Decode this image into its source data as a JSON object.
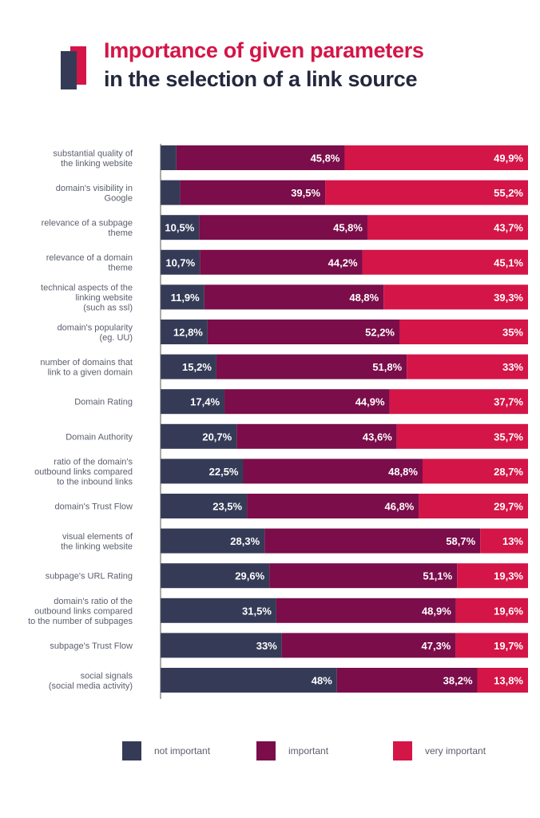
{
  "title": {
    "line1": "Importance of given parameters",
    "line2": "in the selection of a link source"
  },
  "colors": {
    "not_important": "#353b57",
    "important": "#7a0d4a",
    "very_important": "#d41547",
    "label_text": "#5b5f6e",
    "axis": "#555555"
  },
  "legend": {
    "not_important": "not important",
    "important": "important",
    "very_important": "very important"
  },
  "chart_data": {
    "type": "bar",
    "orientation": "horizontal",
    "stacked": true,
    "categories": [
      [
        "substantial quality of",
        "the linking website"
      ],
      [
        "domain's visibility in",
        "Google"
      ],
      [
        "relevance of a subpage",
        "theme"
      ],
      [
        "relevance of a domain",
        "theme"
      ],
      [
        "technical aspects of the",
        "linking website",
        "(such as ssl)"
      ],
      [
        "domain's popularity",
        "(eg. UU)"
      ],
      [
        "number of domains that",
        "link to a given domain"
      ],
      [
        "Domain Rating"
      ],
      [
        "Domain Authority"
      ],
      [
        "ratio of the domain's",
        "outbound links compared",
        "to the inbound links"
      ],
      [
        "domain's Trust Flow"
      ],
      [
        "visual elements of",
        "the linking website"
      ],
      [
        "subpage's URL Rating"
      ],
      [
        "domain's ratio of the",
        "outbound links compared",
        "to the number of subpages"
      ],
      [
        "subpage's Trust Flow"
      ],
      [
        "social signals",
        "(social media activity)"
      ]
    ],
    "series": [
      {
        "name": "not important",
        "values": [
          4.3,
          5.3,
          10.5,
          10.7,
          11.9,
          12.8,
          15.2,
          17.4,
          20.7,
          22.5,
          23.5,
          28.3,
          29.6,
          31.5,
          33,
          48
        ],
        "labels": [
          "",
          "",
          "10,5%",
          "10,7%",
          "11,9%",
          "12,8%",
          "15,2%",
          "17,4%",
          "20,7%",
          "22,5%",
          "23,5%",
          "28,3%",
          "29,6%",
          "31,5%",
          "33%",
          "48%"
        ]
      },
      {
        "name": "important",
        "values": [
          45.8,
          39.5,
          45.8,
          44.2,
          48.8,
          52.2,
          51.8,
          44.9,
          43.6,
          48.8,
          46.8,
          58.7,
          51.1,
          48.9,
          47.3,
          38.2
        ],
        "labels": [
          "45,8%",
          "39,5%",
          "45,8%",
          "44,2%",
          "48,8%",
          "52,2%",
          "51,8%",
          "44,9%",
          "43,6%",
          "48,8%",
          "46,8%",
          "58,7%",
          "51,1%",
          "48,9%",
          "47,3%",
          "38,2%"
        ]
      },
      {
        "name": "very important",
        "values": [
          49.9,
          55.2,
          43.7,
          45.1,
          39.3,
          35,
          33,
          37.7,
          35.7,
          28.7,
          29.7,
          13,
          19.3,
          19.6,
          19.7,
          13.8
        ],
        "labels": [
          "49,9%",
          "55,2%",
          "43,7%",
          "45,1%",
          "39,3%",
          "35%",
          "33%",
          "37,7%",
          "35,7%",
          "28,7%",
          "29,7%",
          "13%",
          "19,3%",
          "19,6%",
          "19,7%",
          "13,8%"
        ]
      }
    ],
    "xlim": [
      0,
      100
    ]
  }
}
